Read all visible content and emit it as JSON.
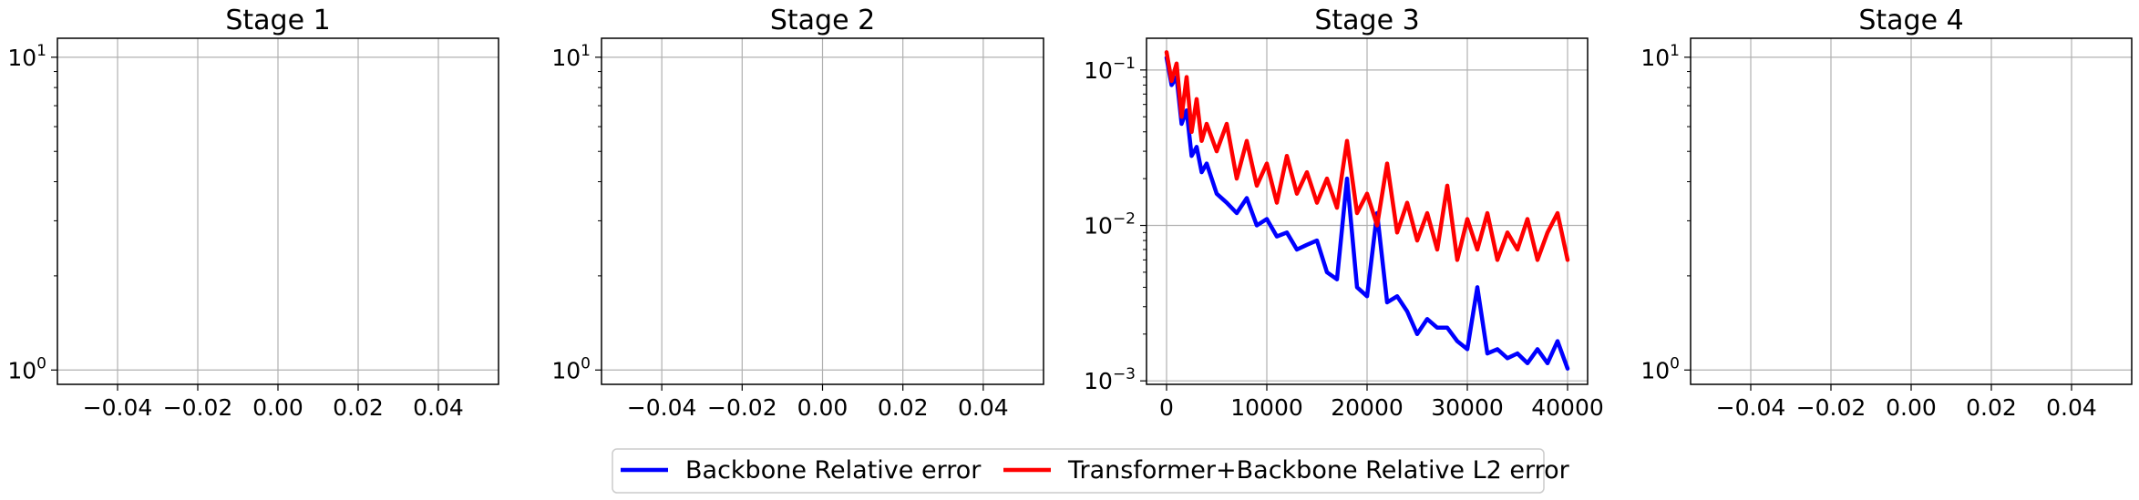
{
  "chart_data": [
    {
      "type": "line",
      "title": "Stage 1",
      "yscale": "log",
      "grid": true,
      "xlim": [
        -0.055,
        0.055
      ],
      "ylim": [
        0.9,
        11.5
      ],
      "x_ticks": [
        -0.04,
        -0.02,
        0.0,
        0.02,
        0.04
      ],
      "x_tick_labels": [
        "−0.04",
        "−0.02",
        "0.00",
        "0.02",
        "0.04"
      ],
      "y_ticks": [
        1,
        10
      ],
      "y_tick_labels": [
        {
          "base": "10",
          "exp": "0"
        },
        {
          "base": "10",
          "exp": "1"
        }
      ],
      "series": []
    },
    {
      "type": "line",
      "title": "Stage 2",
      "yscale": "log",
      "grid": true,
      "xlim": [
        -0.055,
        0.055
      ],
      "ylim": [
        0.9,
        11.5
      ],
      "x_ticks": [
        -0.04,
        -0.02,
        0.0,
        0.02,
        0.04
      ],
      "x_tick_labels": [
        "−0.04",
        "−0.02",
        "0.00",
        "0.02",
        "0.04"
      ],
      "y_ticks": [
        1,
        10
      ],
      "y_tick_labels": [
        {
          "base": "10",
          "exp": "0"
        },
        {
          "base": "10",
          "exp": "1"
        }
      ],
      "series": []
    },
    {
      "type": "line",
      "title": "Stage 3",
      "yscale": "log",
      "grid": true,
      "xlim": [
        -2000,
        42000
      ],
      "ylim": [
        0.00095,
        0.16
      ],
      "x_ticks": [
        0,
        10000,
        20000,
        30000,
        40000
      ],
      "x_tick_labels": [
        "0",
        "10000",
        "20000",
        "30000",
        "40000"
      ],
      "y_ticks": [
        0.001,
        0.01,
        0.1
      ],
      "y_tick_labels": [
        {
          "base": "10",
          "exp": "−3"
        },
        {
          "base": "10",
          "exp": "−2"
        },
        {
          "base": "10",
          "exp": "−1"
        }
      ],
      "series": [
        {
          "name": "Backbone Relative error",
          "color": "#0000ff",
          "x": [
            0,
            500,
            1000,
            1500,
            2000,
            2500,
            3000,
            3500,
            4000,
            5000,
            6000,
            7000,
            8000,
            9000,
            10000,
            11000,
            12000,
            13000,
            14000,
            15000,
            16000,
            17000,
            18000,
            19000,
            20000,
            21000,
            22000,
            23000,
            24000,
            25000,
            26000,
            27000,
            28000,
            29000,
            30000,
            31000,
            32000,
            33000,
            34000,
            35000,
            36000,
            37000,
            38000,
            39000,
            40000
          ],
          "y": [
            0.12,
            0.08,
            0.09,
            0.045,
            0.055,
            0.028,
            0.032,
            0.022,
            0.025,
            0.016,
            0.014,
            0.012,
            0.015,
            0.01,
            0.011,
            0.0085,
            0.009,
            0.007,
            0.0075,
            0.008,
            0.005,
            0.0045,
            0.02,
            0.004,
            0.0035,
            0.012,
            0.0032,
            0.0035,
            0.0028,
            0.002,
            0.0025,
            0.0022,
            0.0022,
            0.0018,
            0.0016,
            0.004,
            0.0015,
            0.0016,
            0.0014,
            0.0015,
            0.0013,
            0.0016,
            0.0013,
            0.0018,
            0.0012
          ]
        },
        {
          "name": "Transformer+Backbone Relative L2 error",
          "color": "#ff0000",
          "x": [
            0,
            500,
            1000,
            1500,
            2000,
            2500,
            3000,
            3500,
            4000,
            5000,
            6000,
            7000,
            8000,
            9000,
            10000,
            11000,
            12000,
            13000,
            14000,
            15000,
            16000,
            17000,
            18000,
            19000,
            20000,
            21000,
            22000,
            23000,
            24000,
            25000,
            26000,
            27000,
            28000,
            29000,
            30000,
            31000,
            32000,
            33000,
            34000,
            35000,
            36000,
            37000,
            38000,
            39000,
            40000
          ],
          "y": [
            0.13,
            0.085,
            0.11,
            0.05,
            0.09,
            0.04,
            0.065,
            0.035,
            0.045,
            0.03,
            0.045,
            0.02,
            0.035,
            0.018,
            0.025,
            0.014,
            0.028,
            0.016,
            0.022,
            0.014,
            0.02,
            0.013,
            0.035,
            0.012,
            0.016,
            0.01,
            0.025,
            0.009,
            0.014,
            0.008,
            0.012,
            0.007,
            0.018,
            0.006,
            0.011,
            0.007,
            0.012,
            0.006,
            0.009,
            0.007,
            0.011,
            0.006,
            0.009,
            0.012,
            0.006
          ]
        }
      ]
    },
    {
      "type": "line",
      "title": "Stage 4",
      "yscale": "log",
      "grid": true,
      "xlim": [
        -0.055,
        0.055
      ],
      "ylim": [
        0.9,
        11.5
      ],
      "x_ticks": [
        -0.04,
        -0.02,
        0.0,
        0.02,
        0.04
      ],
      "x_tick_labels": [
        "−0.04",
        "−0.02",
        "0.00",
        "0.02",
        "0.04"
      ],
      "y_ticks": [
        1,
        10
      ],
      "y_tick_labels": [
        {
          "base": "10",
          "exp": "0"
        },
        {
          "base": "10",
          "exp": "1"
        }
      ],
      "series": []
    }
  ],
  "legend": {
    "placement": "bottom-center",
    "items": [
      {
        "label": "Backbone Relative error",
        "color": "#0000ff"
      },
      {
        "label": "Transformer+Backbone Relative L2 error",
        "color": "#ff0000"
      }
    ]
  }
}
